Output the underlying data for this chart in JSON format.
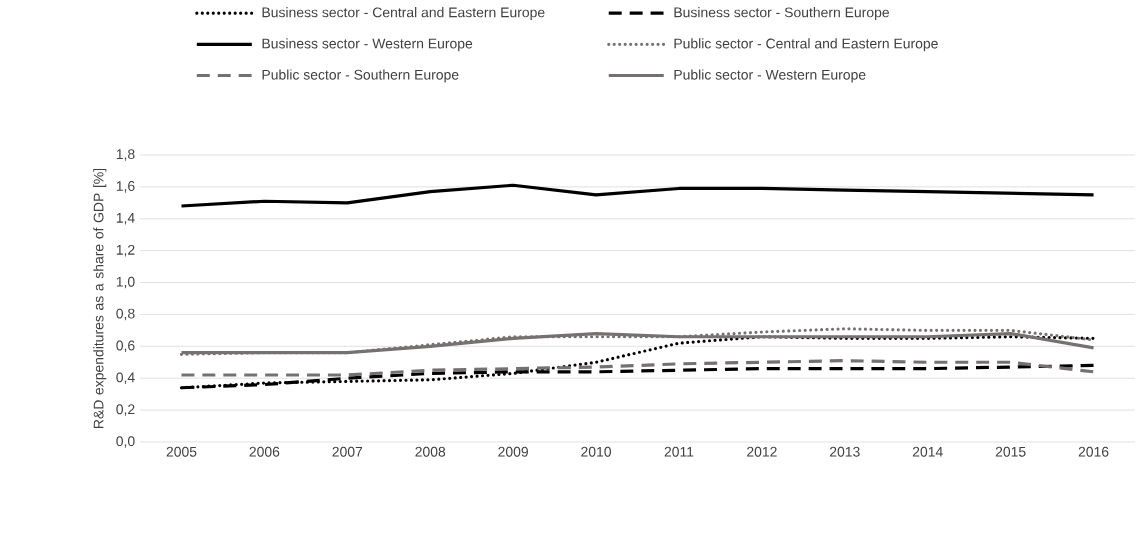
{
  "chart_data": {
    "type": "line",
    "ylabel": "R&D expenditures as a share of GDP [%]",
    "categories": [
      "2005",
      "2006",
      "2007",
      "2008",
      "2009",
      "2010",
      "2011",
      "2012",
      "2013",
      "2014",
      "2015",
      "2016"
    ],
    "series": [
      {
        "name": "Business sector - Central and Eastern Europe",
        "color": "#000000",
        "line_style": "dotted",
        "values": [
          0.34,
          0.37,
          0.38,
          0.39,
          0.43,
          0.5,
          0.62,
          0.66,
          0.65,
          0.65,
          0.66,
          0.65
        ]
      },
      {
        "name": "Business sector - Southern Europe",
        "color": "#000000",
        "line_style": "dashed",
        "values": [
          0.34,
          0.36,
          0.4,
          0.43,
          0.44,
          0.44,
          0.45,
          0.46,
          0.46,
          0.46,
          0.47,
          0.48
        ]
      },
      {
        "name": "Business sector - Western Europe",
        "color": "#000000",
        "line_style": "solid",
        "values": [
          1.48,
          1.51,
          1.5,
          1.57,
          1.61,
          1.55,
          1.59,
          1.59,
          1.58,
          1.57,
          1.56,
          1.55
        ]
      },
      {
        "name": "Public sector - Central and Eastern Europe",
        "color": "#767171",
        "line_style": "dotted",
        "values": [
          0.55,
          0.56,
          0.56,
          0.61,
          0.66,
          0.66,
          0.66,
          0.69,
          0.71,
          0.7,
          0.7,
          0.64
        ]
      },
      {
        "name": "Public sector - Southern Europe",
        "color": "#767171",
        "line_style": "dashed",
        "values": [
          0.42,
          0.42,
          0.42,
          0.45,
          0.46,
          0.47,
          0.49,
          0.5,
          0.51,
          0.5,
          0.5,
          0.44
        ]
      },
      {
        "name": "Public sector - Western Europe",
        "color": "#767171",
        "line_style": "solid",
        "values": [
          0.56,
          0.56,
          0.56,
          0.6,
          0.65,
          0.68,
          0.66,
          0.66,
          0.66,
          0.66,
          0.68,
          0.59
        ]
      }
    ],
    "ylim": [
      0,
      1.8
    ],
    "yticks": [
      {
        "value": 0,
        "label": "0,0"
      },
      {
        "value": 0.2,
        "label": "0,2"
      },
      {
        "value": 0.4,
        "label": "0,4"
      },
      {
        "value": 0.6,
        "label": "0,6"
      },
      {
        "value": 0.8,
        "label": "0,8"
      },
      {
        "value": 1.0,
        "label": "1,0"
      },
      {
        "value": 1.2,
        "label": "1,2"
      },
      {
        "value": 1.4,
        "label": "1,4"
      },
      {
        "value": 1.6,
        "label": "1,6"
      },
      {
        "value": 1.8,
        "label": "1,8"
      }
    ],
    "grid": "y",
    "legend": "top"
  }
}
